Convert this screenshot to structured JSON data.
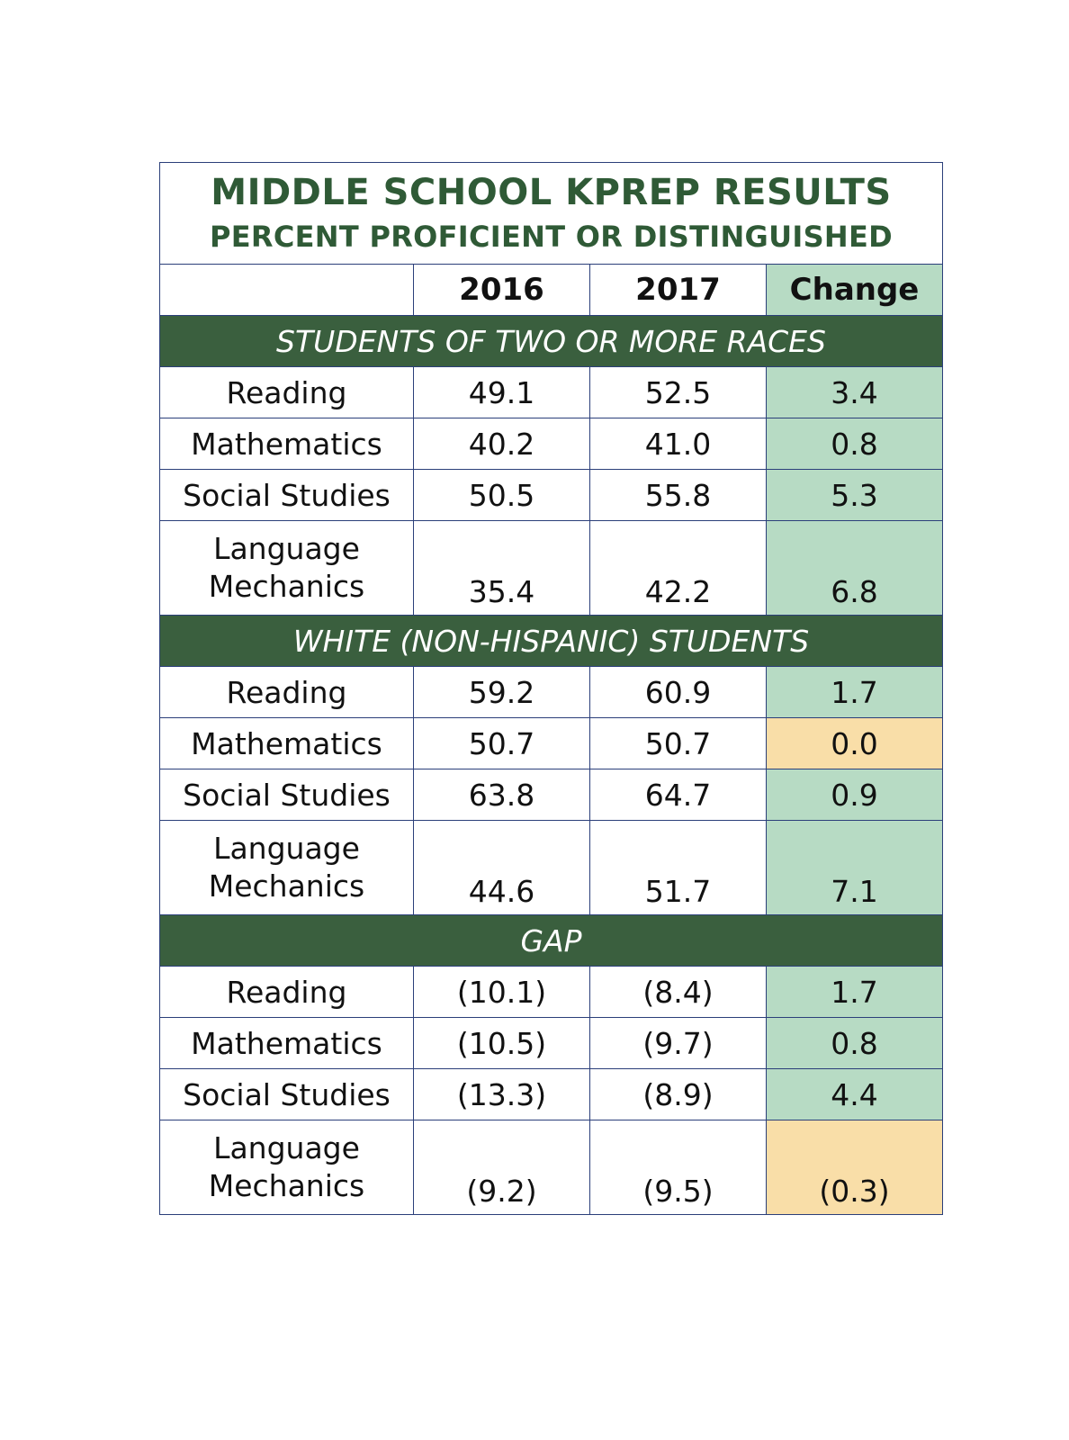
{
  "title": "MIDDLE SCHOOL KPREP RESULTS",
  "subtitle": "PERCENT PROFICIENT OR DISTINGUISHED",
  "columns": [
    "",
    "2016",
    "2017",
    "Change"
  ],
  "colors": {
    "section_bg": "#3a5f3e",
    "positive_change": "#b7dbc4",
    "nonpositive_change": "#f9dea8",
    "title": "#2f5a36"
  },
  "sections": [
    {
      "name": "STUDENTS OF TWO OR MORE RACES",
      "rows": [
        {
          "subject": "Reading",
          "y2016": "49.1",
          "y2017": "52.5",
          "change": "3.4",
          "status": "green"
        },
        {
          "subject": "Mathematics",
          "y2016": "40.2",
          "y2017": "41.0",
          "change": "0.8",
          "status": "green"
        },
        {
          "subject": "Social Studies",
          "y2016": "50.5",
          "y2017": "55.8",
          "change": "5.3",
          "status": "green"
        },
        {
          "subject": "Language Mechanics",
          "y2016": "35.4",
          "y2017": "42.2",
          "change": "6.8",
          "status": "green"
        }
      ]
    },
    {
      "name": "WHITE (NON-HISPANIC) STUDENTS",
      "rows": [
        {
          "subject": "Reading",
          "y2016": "59.2",
          "y2017": "60.9",
          "change": "1.7",
          "status": "green"
        },
        {
          "subject": "Mathematics",
          "y2016": "50.7",
          "y2017": "50.7",
          "change": "0.0",
          "status": "orange"
        },
        {
          "subject": "Social Studies",
          "y2016": "63.8",
          "y2017": "64.7",
          "change": "0.9",
          "status": "green"
        },
        {
          "subject": "Language Mechanics",
          "y2016": "44.6",
          "y2017": "51.7",
          "change": "7.1",
          "status": "green"
        }
      ]
    },
    {
      "name": "GAP",
      "rows": [
        {
          "subject": "Reading",
          "y2016": "(10.1)",
          "y2017": "(8.4)",
          "change": "1.7",
          "status": "green"
        },
        {
          "subject": "Mathematics",
          "y2016": "(10.5)",
          "y2017": "(9.7)",
          "change": "0.8",
          "status": "green"
        },
        {
          "subject": "Social Studies",
          "y2016": "(13.3)",
          "y2017": "(8.9)",
          "change": "4.4",
          "status": "green"
        },
        {
          "subject": "Language Mechanics",
          "y2016": "(9.2)",
          "y2017": "(9.5)",
          "change": "(0.3)",
          "status": "orange"
        }
      ]
    }
  ]
}
